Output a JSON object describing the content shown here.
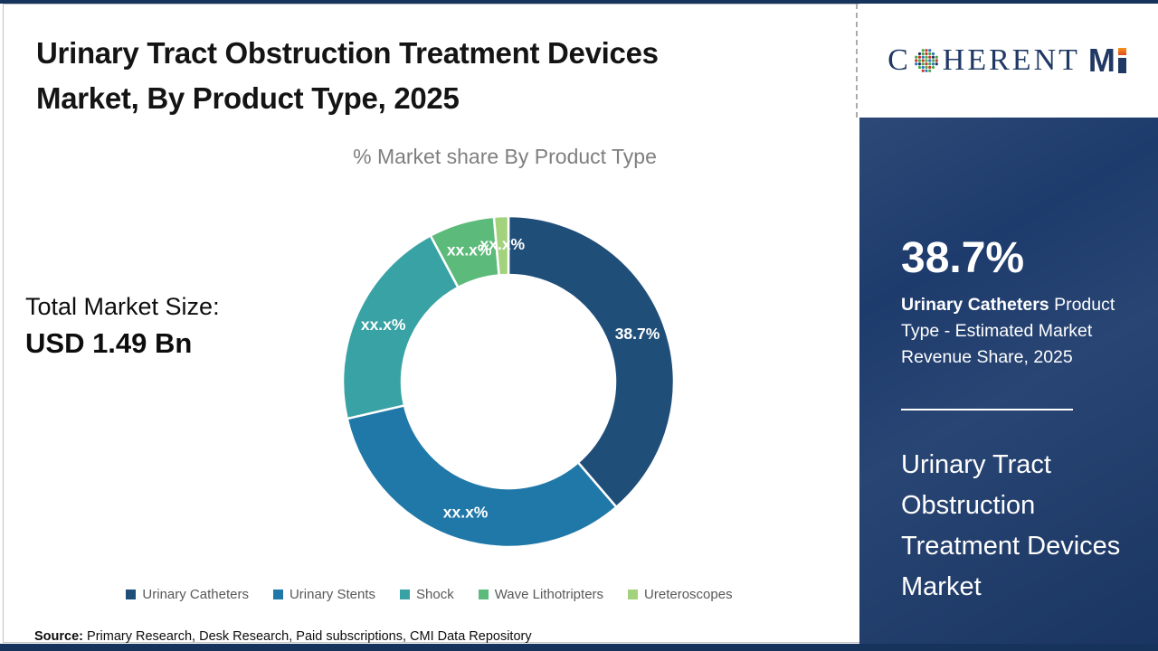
{
  "header": {
    "title_line1": "Urinary Tract Obstruction Treatment Devices",
    "title_line2": "Market, By Product Type, 2025",
    "subtitle": "% Market share By Product Type"
  },
  "logo": {
    "part_c": "C",
    "part_herent": "HERENT",
    "part_m": "M",
    "globe_icon": "dotted-globe",
    "brand_navy": "#1f3864",
    "accent_orange": "#ee6a1f"
  },
  "total_market": {
    "label": "Total Market Size:",
    "value": "USD 1.49 Bn"
  },
  "chart_data": {
    "type": "donut",
    "title": "% Market share By Product Type",
    "categories": [
      "Urinary Catheters",
      "Urinary Stents",
      "Shock",
      "Wave Lithotripters",
      "Ureteroscopes"
    ],
    "values": [
      38.7,
      32.7,
      20.8,
      6.4,
      1.4
    ],
    "labels": [
      "38.7%",
      "xx.x%",
      "xx.x%",
      "xx.x%",
      "xx.x%"
    ],
    "colors": [
      "#1F4E79",
      "#1F78A8",
      "#38A2A4",
      "#5CBA7A",
      "#A3D27C"
    ],
    "legend_position": "bottom",
    "inner_radius": 118,
    "outer_radius": 183,
    "label_radius": 152
  },
  "sidebar": {
    "background": "#1d3b6c",
    "stat_value": "38.7%",
    "stat_desc_bold": "Urinary Catheters",
    "stat_desc_rest": " Product Type - Estimated Market Revenue Share, 2025",
    "market_name": "Urinary Tract Obstruction Treatment Devices Market"
  },
  "source": {
    "label": "Source:",
    "text": " Primary Research, Desk Research, Paid subscriptions, CMI Data Repository"
  }
}
